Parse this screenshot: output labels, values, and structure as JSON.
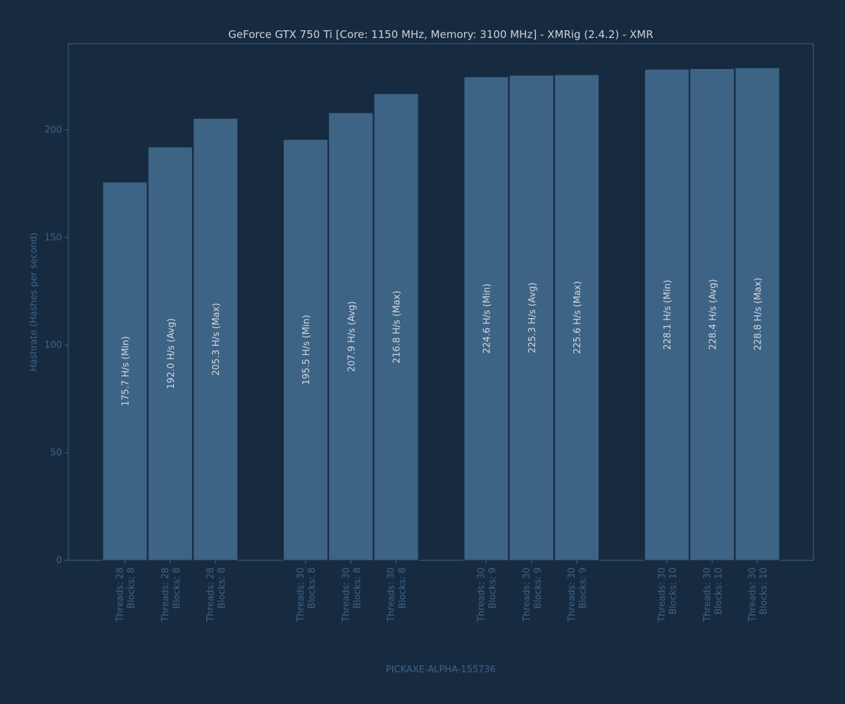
{
  "chart_data": {
    "type": "bar",
    "title": "GeForce GTX 750 Ti [Core: 1150 MHz, Memory: 3100 MHz] - XMRig (2.4.2) - XMR",
    "ylabel": "Hashrate (Hashes per second)",
    "xlabel": "PICKAXE-ALPHA-155736",
    "ylim": [
      0,
      240
    ],
    "yticks": [
      0,
      50,
      100,
      150,
      200
    ],
    "grid": false,
    "colors": {
      "background": "#172b40",
      "bar": "#3d6385",
      "bar_edge": "#172b40",
      "frame": "#3d6385",
      "title": "#c9d1d9",
      "label": "#d2d8de",
      "axis": "#3d6385"
    },
    "groups": [
      {
        "bars": [
          {
            "value": 175.7,
            "label": "175.7 H/s (Min)",
            "tick": [
              "Threads: 28",
              "Blocks: 8"
            ]
          },
          {
            "value": 192.0,
            "label": "192.0 H/s (Avg)",
            "tick": [
              "Threads: 28",
              "Blocks: 8"
            ]
          },
          {
            "value": 205.3,
            "label": "205.3 H/s (Max)",
            "tick": [
              "Threads: 28",
              "Blocks: 8"
            ]
          }
        ]
      },
      {
        "bars": [
          {
            "value": 195.5,
            "label": "195.5 H/s (Min)",
            "tick": [
              "Threads: 30",
              "Blocks: 8"
            ]
          },
          {
            "value": 207.9,
            "label": "207.9 H/s (Avg)",
            "tick": [
              "Threads: 30",
              "Blocks: 8"
            ]
          },
          {
            "value": 216.8,
            "label": "216.8 H/s (Max)",
            "tick": [
              "Threads: 30",
              "Blocks: 8"
            ]
          }
        ]
      },
      {
        "bars": [
          {
            "value": 224.6,
            "label": "224.6 H/s (Min)",
            "tick": [
              "Threads: 30",
              "Blocks: 9"
            ]
          },
          {
            "value": 225.3,
            "label": "225.3 H/s (Avg)",
            "tick": [
              "Threads: 30",
              "Blocks: 9"
            ]
          },
          {
            "value": 225.6,
            "label": "225.6 H/s (Max)",
            "tick": [
              "Threads: 30",
              "Blocks: 9"
            ]
          }
        ]
      },
      {
        "bars": [
          {
            "value": 228.1,
            "label": "228.1 H/s (Min)",
            "tick": [
              "Threads: 30",
              "Blocks: 10"
            ]
          },
          {
            "value": 228.4,
            "label": "228.4 H/s (Avg)",
            "tick": [
              "Threads: 30",
              "Blocks: 10"
            ]
          },
          {
            "value": 228.8,
            "label": "228.8 H/s (Max)",
            "tick": [
              "Threads: 30",
              "Blocks: 10"
            ]
          }
        ]
      }
    ]
  }
}
